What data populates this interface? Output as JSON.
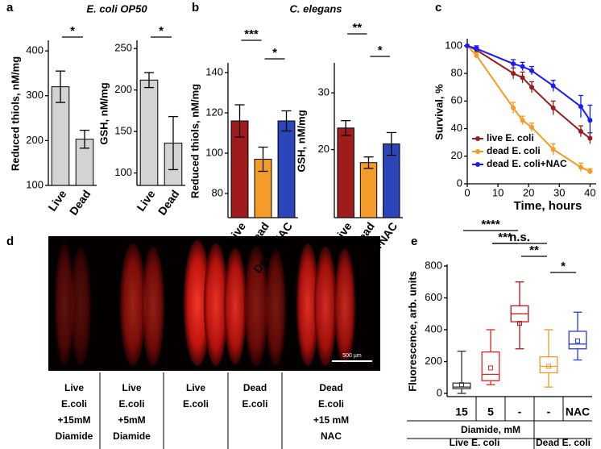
{
  "panel_labels": [
    "a",
    "b",
    "c",
    "d",
    "e"
  ],
  "chart_data": [
    {
      "type": "bar",
      "title": "E. coli OP50",
      "ylabel": "Reduced thiols, nM/mg",
      "categories": [
        "Live",
        "Dead"
      ],
      "values": [
        320,
        203
      ],
      "errors": [
        35,
        20
      ],
      "color": "#d3d3d3",
      "ylim": [
        100,
        420
      ],
      "yticks": [
        100,
        200,
        300,
        400
      ],
      "significance": [
        "*"
      ]
    },
    {
      "type": "bar",
      "ylabel": "GSH, nM/mg",
      "categories": [
        "Live",
        "Dead"
      ],
      "values": [
        212,
        136
      ],
      "errors": [
        9,
        32
      ],
      "color": "#d3d3d3",
      "ylim": [
        85,
        258
      ],
      "yticks": [
        100,
        150,
        200,
        250
      ],
      "significance": [
        "*"
      ]
    },
    {
      "type": "bar",
      "title": "C. elegans",
      "ylabel": "Reduced thiols, nM/mg",
      "categories": [
        "Live",
        "Dead",
        "Dead+NAC"
      ],
      "values": [
        116,
        97,
        116
      ],
      "errors": [
        8,
        6,
        5
      ],
      "colors": [
        "#a01c1c",
        "#f39c29",
        "#2a46b8"
      ],
      "ylim": [
        68,
        144
      ],
      "yticks": [
        80,
        100,
        120,
        140
      ],
      "significance": [
        "***",
        "*"
      ]
    },
    {
      "type": "bar",
      "ylabel": "GSH, nM/mg",
      "categories": [
        "Live",
        "Dead",
        "Dead+NAC"
      ],
      "values": [
        23.8,
        17.7,
        21
      ],
      "errors": [
        1.3,
        1,
        2
      ],
      "colors": [
        "#a01c1c",
        "#f39c29",
        "#2a46b8"
      ],
      "ylim": [
        8,
        35
      ],
      "yticks": [
        20,
        30
      ],
      "significance": [
        "**",
        "*"
      ]
    },
    {
      "type": "line",
      "xlabel": "Time, hours",
      "ylabel": "Survival, %",
      "x": [
        0,
        3,
        15,
        18,
        21,
        28,
        37,
        40
      ],
      "xlim": [
        0,
        42
      ],
      "xticks": [
        0,
        10,
        20,
        30,
        40
      ],
      "ylim": [
        0,
        104
      ],
      "yticks": [
        0,
        20,
        40,
        60,
        80,
        100
      ],
      "series": [
        {
          "name": "live E. coli",
          "color": "#9b1c1c",
          "values": [
            100,
            97,
            80,
            77,
            70,
            55,
            38,
            33
          ],
          "errors": [
            0,
            2,
            4,
            4,
            4,
            5,
            4,
            4
          ]
        },
        {
          "name": "dead E. coli",
          "color": "#f59a23",
          "values": [
            100,
            93,
            55,
            46,
            41,
            25,
            12,
            9
          ],
          "errors": [
            0,
            2,
            4,
            3,
            3,
            4,
            3,
            2
          ]
        },
        {
          "name": "dead E. coli+NAC",
          "color": "#1a1aff",
          "values": [
            100,
            98,
            87,
            85,
            82,
            71,
            56,
            46
          ],
          "errors": [
            0,
            2,
            3,
            3,
            3,
            4,
            8,
            11
          ]
        }
      ],
      "legend": "lower left"
    },
    {
      "type": "box",
      "ylabel": "Fluorescence, arb. units",
      "categories": [
        "15",
        "5",
        "-",
        "-",
        "NAC"
      ],
      "colors": [
        "#333333",
        "#e8231f",
        "#b01818",
        "#f59a23",
        "#2a3fd8"
      ],
      "ylim": [
        -20,
        800
      ],
      "yticks": [
        0,
        200,
        400,
        600,
        800
      ],
      "boxes": [
        {
          "min": 0,
          "q1": 30,
          "median": 40,
          "q3": 65,
          "max": 265,
          "mean": 55
        },
        {
          "min": 55,
          "q1": 80,
          "median": 120,
          "q3": 260,
          "max": 400,
          "mean": 160
        },
        {
          "min": 280,
          "q1": 450,
          "median": 500,
          "q3": 550,
          "max": 700,
          "mean": 440
        },
        {
          "min": 40,
          "q1": 130,
          "median": 170,
          "q3": 230,
          "max": 400,
          "mean": 170
        },
        {
          "min": 210,
          "q1": 280,
          "median": 310,
          "q3": 390,
          "max": 510,
          "mean": 330
        }
      ],
      "significance": [
        "n.s.",
        "****",
        "***",
        "**",
        "*"
      ],
      "group_label": "Diamide, mM",
      "groups": [
        "Live E. coli",
        "Dead E. coli"
      ]
    }
  ],
  "image_panel": {
    "scale_bar": "500 µm",
    "captions": [
      [
        "Live",
        "E.coli",
        "+15mM",
        "Diamide"
      ],
      [
        "Live",
        "E.coli",
        "+5mM",
        "Diamide"
      ],
      [
        "Live",
        "E.coli"
      ],
      [
        "Dead",
        "E.coli"
      ],
      [
        "Dead",
        "E.coli",
        "+15 mM",
        "NAC"
      ]
    ]
  }
}
